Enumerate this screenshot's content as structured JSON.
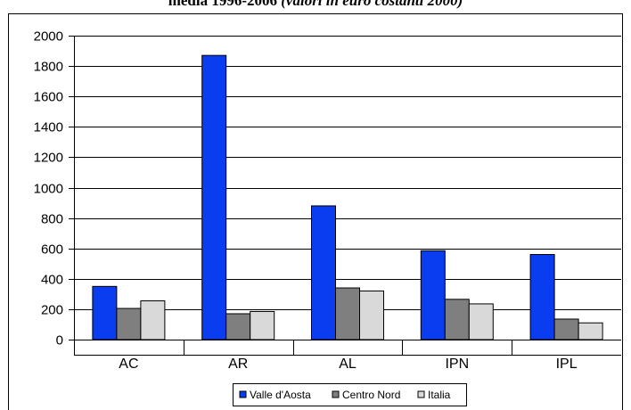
{
  "title": {
    "main": "media 1996-2006",
    "italic": "(valori in euro costanti 2000)"
  },
  "chart_data": {
    "type": "bar",
    "categories": [
      "AC",
      "AR",
      "AL",
      "IPN",
      "IPL"
    ],
    "series": [
      {
        "name": "Valle d'Aosta",
        "values": [
          350,
          1870,
          880,
          585,
          560
        ],
        "color": "#0a3cf0"
      },
      {
        "name": "Centro Nord",
        "values": [
          205,
          170,
          340,
          265,
          135
        ],
        "color": "#7f7f7f"
      },
      {
        "name": "Italia",
        "values": [
          255,
          185,
          320,
          235,
          110
        ],
        "color": "#d9d9d9"
      }
    ],
    "ylim": [
      0,
      2000
    ],
    "yticks": [
      0,
      200,
      400,
      600,
      800,
      1000,
      1200,
      1400,
      1600,
      1800,
      2000
    ],
    "grid": true,
    "legend_position": "bottom"
  }
}
